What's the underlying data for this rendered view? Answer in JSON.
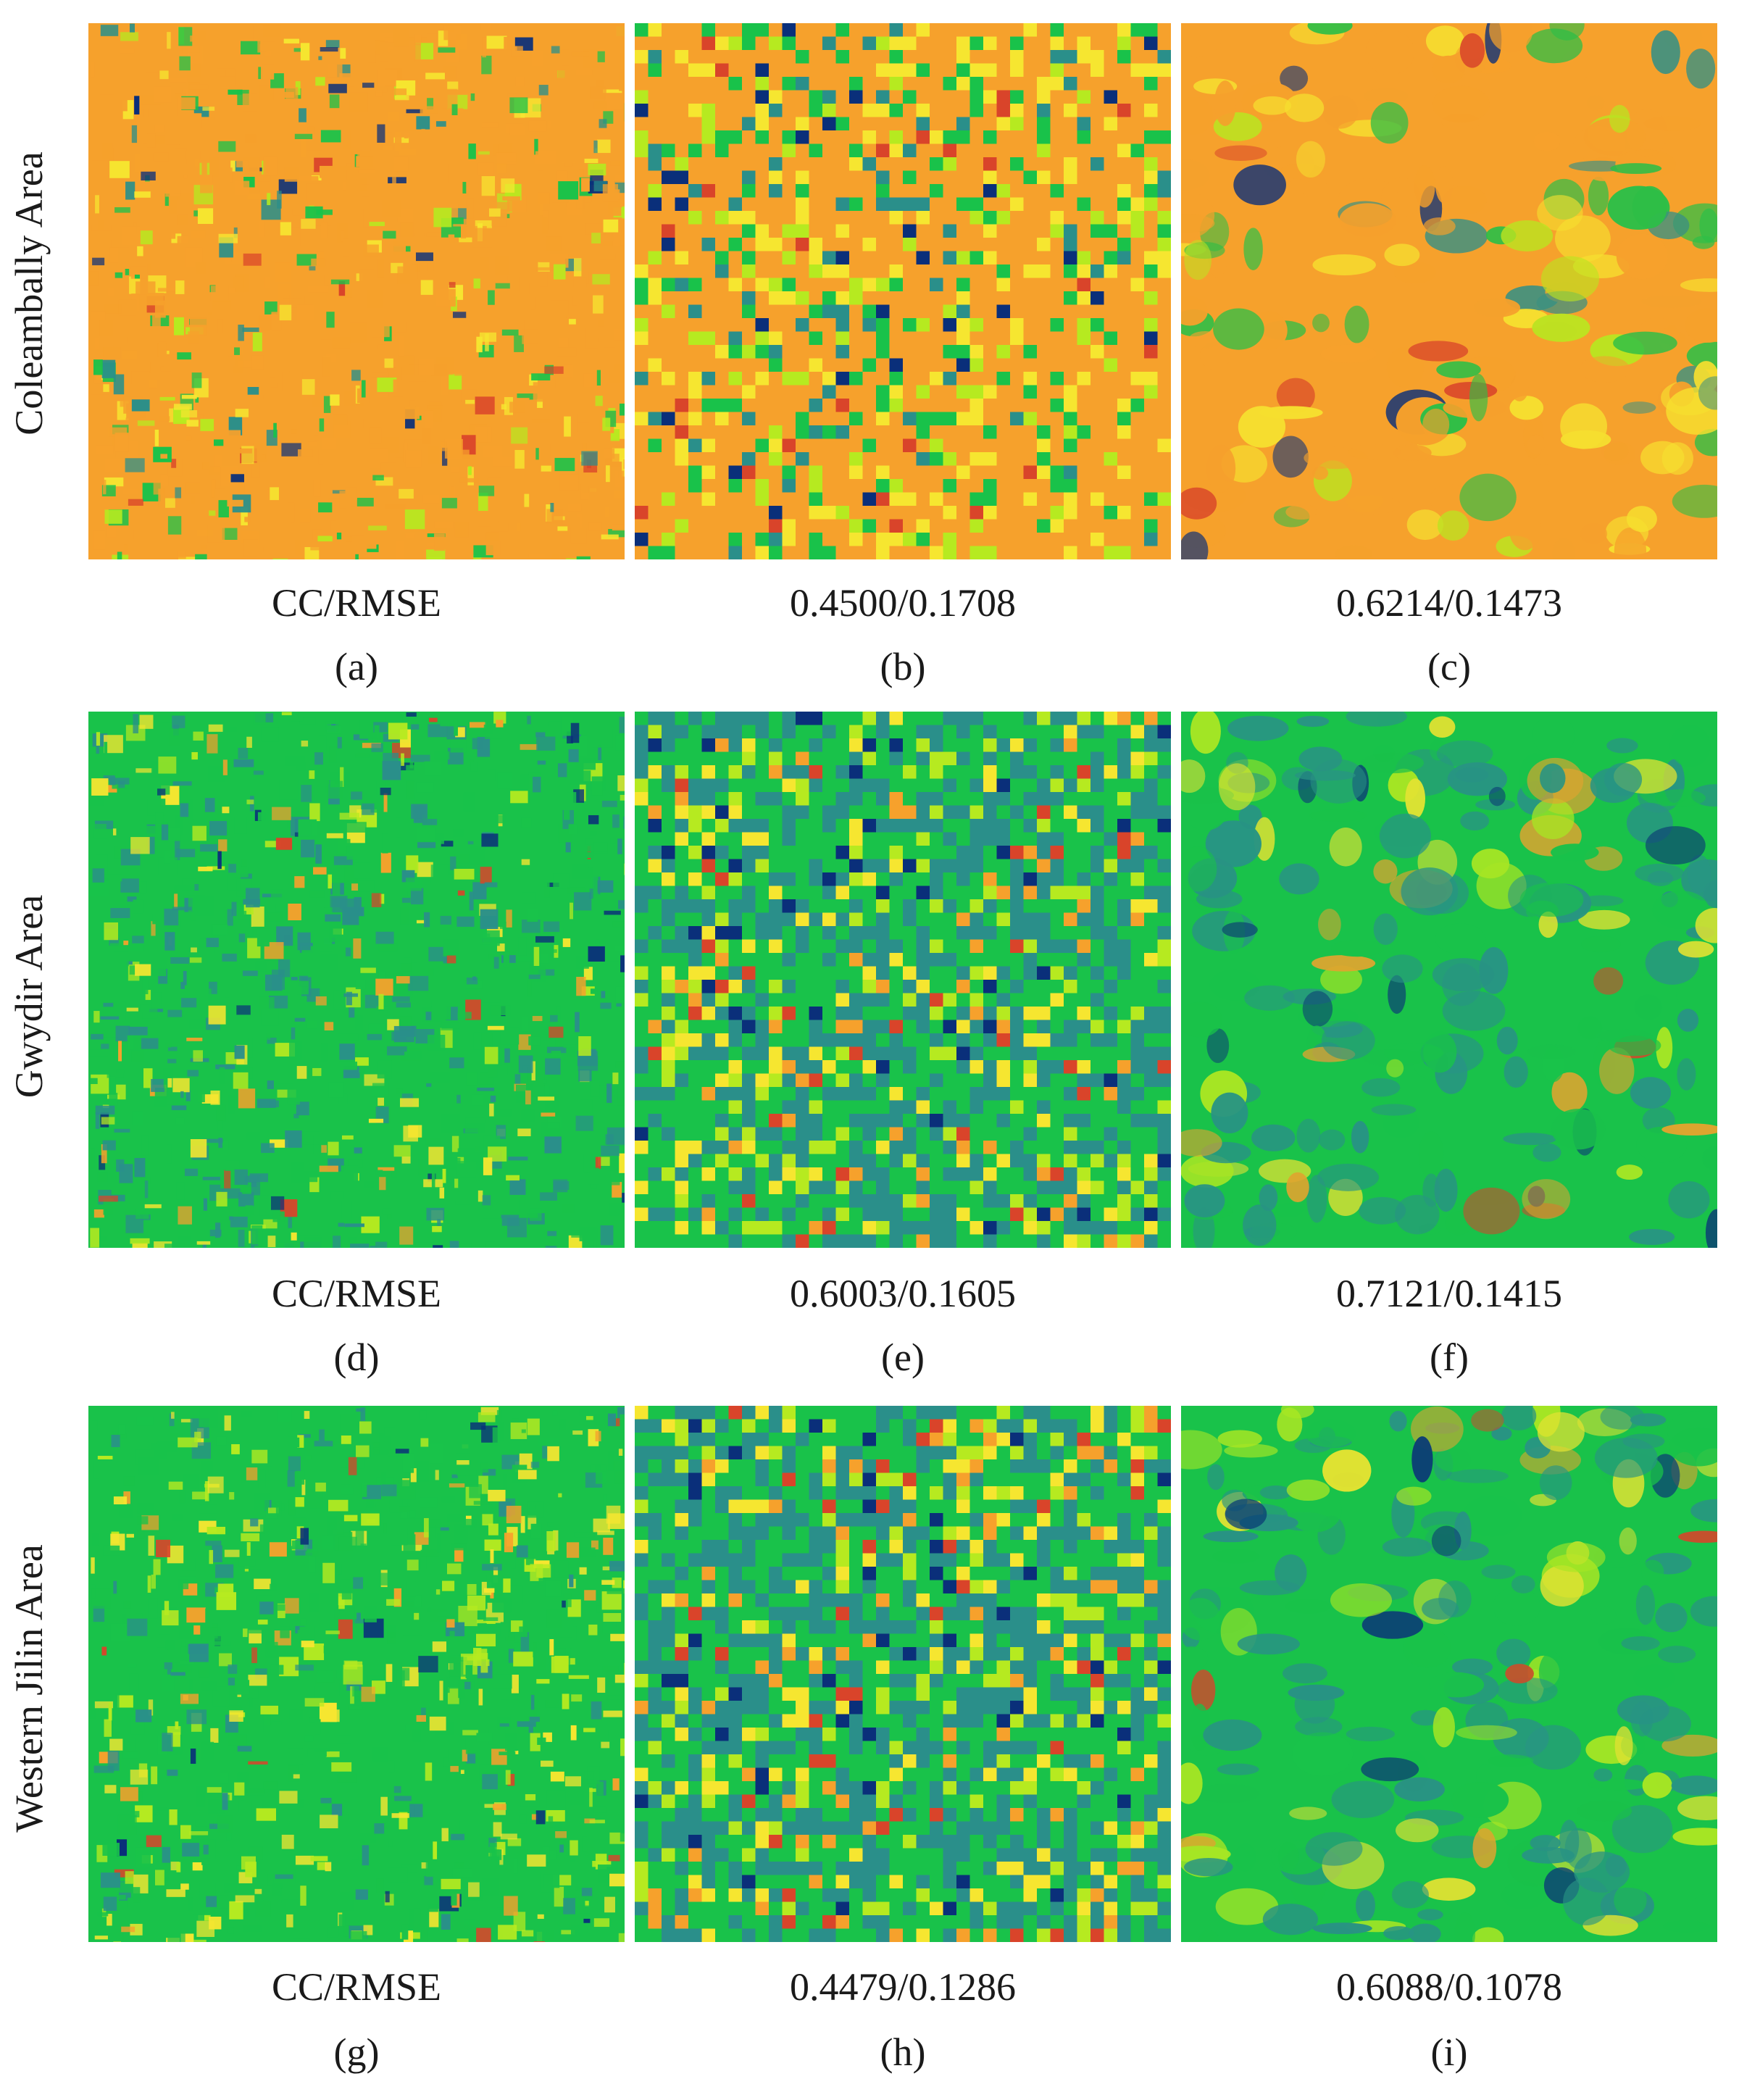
{
  "rows": [
    {
      "label": "Coleambally Area",
      "metrics": [
        "CC/RMSE",
        "0.4500/0.1708",
        "0.6214/0.1473"
      ],
      "letters": [
        "(a)",
        "(b)",
        "(c)"
      ]
    },
    {
      "label": "Gwydir Area",
      "metrics": [
        "CC/RMSE",
        "0.6003/0.1605",
        "0.7121/0.1415"
      ],
      "letters": [
        "(d)",
        "(e)",
        "(f)"
      ]
    },
    {
      "label": "Western Jilin Area",
      "metrics": [
        "CC/RMSE",
        "0.4479/0.1286",
        "0.6088/0.1078"
      ],
      "letters": [
        "(g)",
        "(h)",
        "(i)"
      ]
    }
  ],
  "palette": {
    "dark_blue": "#0a2f7a",
    "teal": "#2a8f8a",
    "green": "#19c24a",
    "lime": "#b6ea20",
    "yellow": "#f6e630",
    "orange": "#f6a12c",
    "red": "#d9442a"
  },
  "panel_styles": [
    {
      "base": "orange",
      "texture": "fine"
    },
    {
      "base": "orange",
      "texture": "blocky"
    },
    {
      "base": "orange",
      "texture": "smooth"
    },
    {
      "base": "green-teal",
      "texture": "fine"
    },
    {
      "base": "green-teal",
      "texture": "blocky"
    },
    {
      "base": "green-teal",
      "texture": "smooth"
    },
    {
      "base": "green",
      "texture": "fine"
    },
    {
      "base": "green-teal",
      "texture": "blocky"
    },
    {
      "base": "green-teal",
      "texture": "smooth"
    }
  ]
}
